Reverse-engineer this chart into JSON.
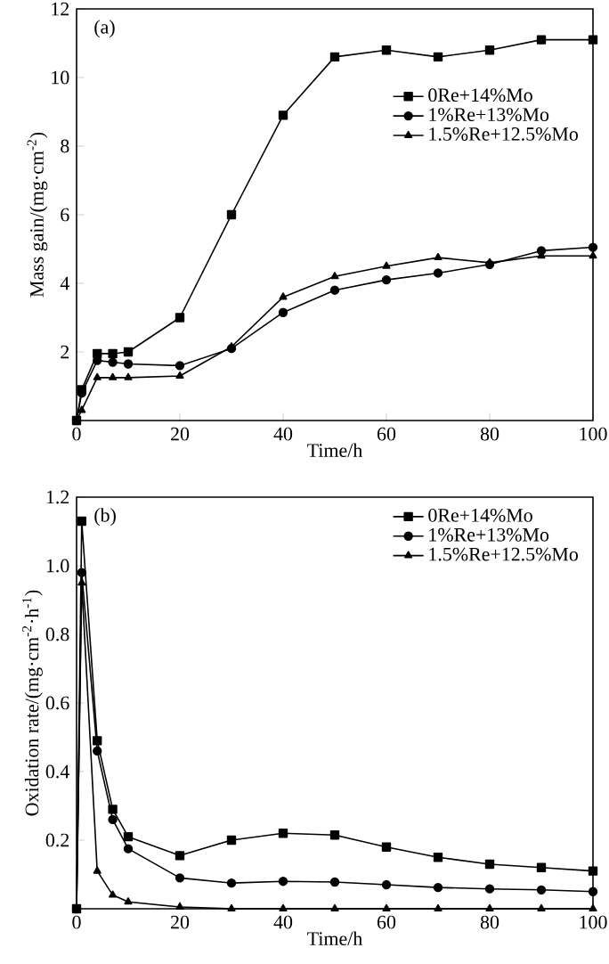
{
  "chart_data": [
    {
      "type": "line",
      "xlabel": "Time/h",
      "ylabel": "Mass gain/(mg·cm$^{-2}$)",
      "annotations": [
        "(a)"
      ],
      "xlim": [
        0,
        100
      ],
      "ylim": [
        0,
        12
      ],
      "xticks": [
        0,
        20,
        40,
        60,
        80,
        100
      ],
      "yticks": [
        2,
        4,
        6,
        8,
        10,
        12
      ],
      "legend": "right",
      "grid": false,
      "line_style": "solid",
      "x": [
        0,
        1,
        4,
        7,
        10,
        20,
        30,
        40,
        50,
        60,
        70,
        80,
        90,
        100
      ],
      "series": [
        {
          "name": "0Re+14%Mo",
          "color": "#000000",
          "marker": "square",
          "values": [
            0,
            0.9,
            1.95,
            1.95,
            2.0,
            3.0,
            6.0,
            8.9,
            10.6,
            10.8,
            10.6,
            10.8,
            11.1,
            11.1
          ]
        },
        {
          "name": "1%Re+13%Mo",
          "color": "#000000",
          "marker": "circle",
          "values": [
            0,
            0.8,
            1.75,
            1.7,
            1.65,
            1.6,
            2.1,
            3.15,
            3.8,
            4.1,
            4.3,
            4.55,
            4.95,
            5.05
          ]
        },
        {
          "name": "1.5%Re+12.5%Mo",
          "color": "#000000",
          "marker": "triangle",
          "values": [
            0,
            0.3,
            1.25,
            1.25,
            1.25,
            1.3,
            2.15,
            3.6,
            4.2,
            4.5,
            4.75,
            4.6,
            4.8,
            4.8
          ]
        }
      ]
    },
    {
      "type": "line",
      "xlabel": "Time/h",
      "ylabel": "Oxidation rate/(mg·cm$^{-2}$·h$^{-1}$)",
      "annotations": [
        "(b)"
      ],
      "xlim": [
        0,
        100
      ],
      "ylim": [
        0,
        1.2
      ],
      "xticks": [
        0,
        20,
        40,
        60,
        80,
        100
      ],
      "yticks": [
        0.2,
        0.4,
        0.6,
        0.8,
        {
          "value": 1,
          "label": "1.0"
        },
        1.2
      ],
      "legend": "top right",
      "grid": false,
      "line_style": "solid",
      "x": [
        0,
        1,
        4,
        7,
        10,
        20,
        30,
        40,
        50,
        60,
        70,
        80,
        90,
        100
      ],
      "series": [
        {
          "name": "0Re+14%Mo",
          "color": "#000000",
          "marker": "square",
          "values": [
            0,
            1.13,
            0.49,
            0.29,
            0.21,
            0.155,
            0.2,
            0.22,
            0.215,
            0.18,
            0.15,
            0.13,
            0.12,
            0.11
          ]
        },
        {
          "name": "1%Re+13%Mo",
          "color": "#000000",
          "marker": "circle",
          "values": [
            0,
            0.98,
            0.46,
            0.26,
            0.175,
            0.09,
            0.075,
            0.08,
            0.078,
            0.07,
            0.062,
            0.058,
            0.055,
            0.05
          ]
        },
        {
          "name": "1.5%Re+12.5%Mo",
          "color": "#000000",
          "marker": "triangle",
          "values": [
            0,
            0.95,
            0.11,
            0.04,
            0.02,
            0.005,
            0,
            0,
            0,
            0,
            0,
            0,
            0,
            0
          ]
        }
      ]
    }
  ]
}
